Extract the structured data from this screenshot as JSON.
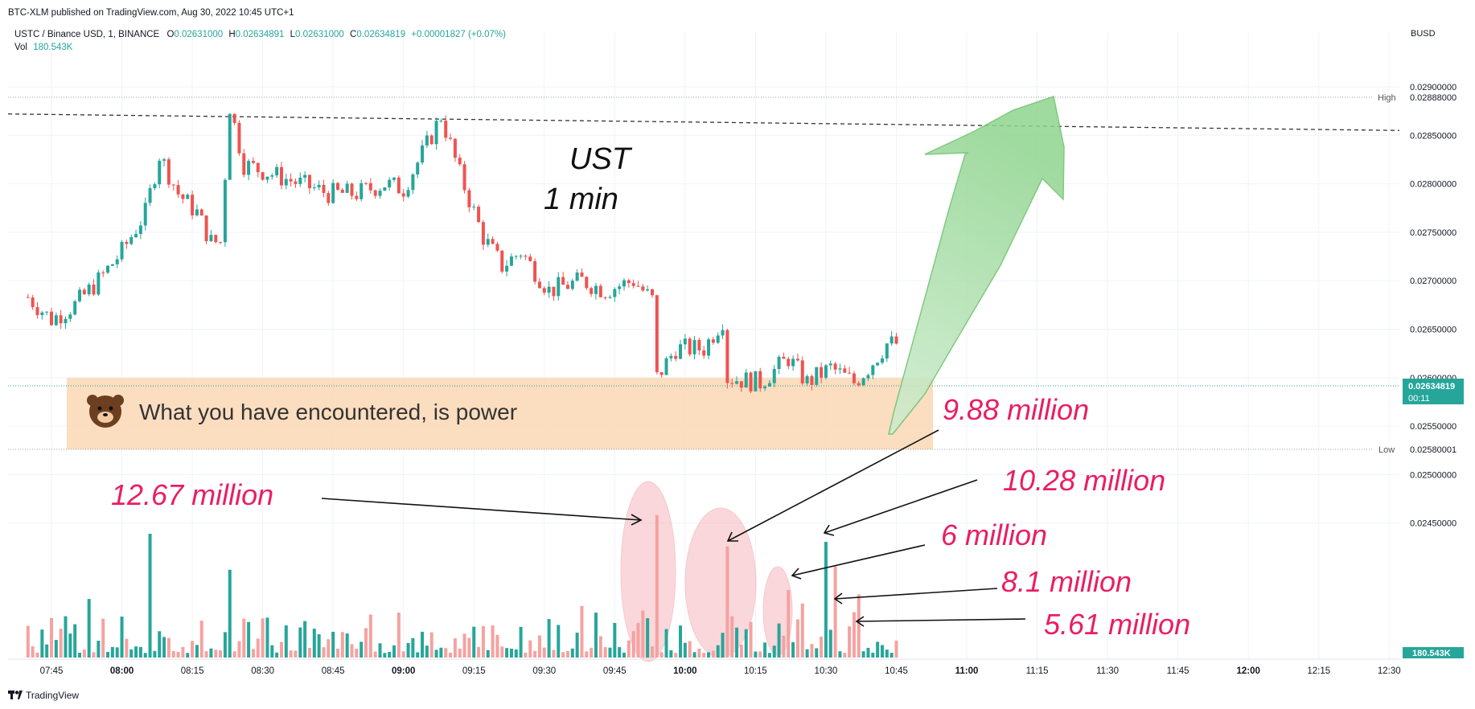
{
  "header": {
    "publisher_line": "BTC-XLM published on TradingView.com, Aug 30, 2022 10:45 UTC+1",
    "symbol": "USTC / Binance USD, 1, BINANCE",
    "o_label": "O",
    "o_value": "0.02631000",
    "h_label": "H",
    "h_value": "0.02634891",
    "l_label": "L",
    "l_value": "0.02631000",
    "c_label": "C",
    "c_value": "0.02634819",
    "change": "+0.00001827 (+0.07%)",
    "vol_label": "Vol",
    "vol_value": "180.543K"
  },
  "axis": {
    "currency": "BUSD",
    "high_tag": "High",
    "high_value": "0.02888000",
    "low_tag": "Low",
    "low_value": "0.02580001",
    "last_price": "0.02634819",
    "countdown": "00:11",
    "volume_tag": "180.543K"
  },
  "annotations": {
    "title_line1": "UST",
    "title_line2": "1 min",
    "banner_text": "What you have encountered, is power",
    "vol_labels": [
      "12.67 million",
      "9.88 million",
      "10.28 million",
      "6 million",
      "8.1 million",
      "5.61 million"
    ]
  },
  "footer": {
    "brand": "TradingView"
  },
  "colors": {
    "up": "#26a69a",
    "down": "#ef5350",
    "vol_up": "#26a69a",
    "vol_down": "#f5a2a0",
    "pink_text": "#e91e63",
    "banner_bg": "#fbd9b8",
    "arrow_green": "#8fd48f"
  },
  "chart_data": {
    "type": "candlestick",
    "symbol": "USTC / Binance USD, 1, BINANCE",
    "interval": "1 min",
    "currency": "BUSD",
    "y_ticks": [
      0.029,
      0.0285,
      0.028,
      0.0275,
      0.027,
      0.0265,
      0.026,
      0.0255,
      0.025,
      0.0245
    ],
    "x_ticks": [
      "07:45",
      "08:00",
      "08:15",
      "08:30",
      "08:45",
      "09:00",
      "09:15",
      "09:30",
      "09:45",
      "10:00",
      "10:15",
      "10:30",
      "10:45",
      "11:00",
      "11:15",
      "11:30",
      "11:45",
      "12:00",
      "12:15",
      "12:30"
    ],
    "x_range": [
      "07:40",
      "12:35"
    ],
    "y_range": [
      0.0242,
      0.0292
    ],
    "high": 0.02888,
    "low": 0.02580001,
    "last": 0.02634819,
    "resistance_line": {
      "from": [
        "07:40",
        0.02872
      ],
      "to": [
        "12:35",
        0.02855
      ]
    },
    "support_band": [
      0.0258,
      0.02643
    ],
    "anchors": [
      [
        "07:40",
        0.02683
      ],
      [
        "07:45",
        0.0266
      ],
      [
        "07:50",
        0.02675
      ],
      [
        "07:55",
        0.027
      ],
      [
        "08:00",
        0.0273
      ],
      [
        "08:05",
        0.0277
      ],
      [
        "08:08",
        0.0283
      ],
      [
        "08:12",
        0.0279
      ],
      [
        "08:16",
        0.0277
      ],
      [
        "08:19",
        0.0274
      ],
      [
        "08:21",
        0.0274
      ],
      [
        "08:23",
        0.0288
      ],
      [
        "08:26",
        0.0282
      ],
      [
        "08:32",
        0.0281
      ],
      [
        "08:38",
        0.028
      ],
      [
        "08:44",
        0.0279
      ],
      [
        "08:50",
        0.0279
      ],
      [
        "08:56",
        0.028
      ],
      [
        "09:00",
        0.02795
      ],
      [
        "09:05",
        0.0284
      ],
      [
        "09:08",
        0.0287
      ],
      [
        "09:12",
        0.0281
      ],
      [
        "09:17",
        0.02745
      ],
      [
        "09:21",
        0.02715
      ],
      [
        "09:25",
        0.0273
      ],
      [
        "09:31",
        0.0269
      ],
      [
        "09:38",
        0.027
      ],
      [
        "09:43",
        0.0269
      ],
      [
        "09:49",
        0.027
      ],
      [
        "09:53",
        0.0268
      ],
      [
        "09:54",
        0.026
      ],
      [
        "09:58",
        0.0263
      ],
      [
        "10:04",
        0.0263
      ],
      [
        "10:08",
        0.0266
      ],
      [
        "10:09",
        0.026
      ],
      [
        "10:16",
        0.02595
      ],
      [
        "10:22",
        0.0262
      ],
      [
        "10:26",
        0.02595
      ],
      [
        "10:31",
        0.0261
      ],
      [
        "10:36",
        0.02595
      ],
      [
        "10:39",
        0.0261
      ],
      [
        "10:43",
        0.02635
      ],
      [
        "10:45",
        0.02635
      ]
    ],
    "volume_annotations_million": [
      {
        "time": "09:54",
        "value": 12.67
      },
      {
        "time": "10:09",
        "value": 9.88
      },
      {
        "time": "10:30",
        "value": 10.28
      },
      {
        "time": "10:22",
        "value": 6
      },
      {
        "time": "10:32",
        "value": 8.1
      },
      {
        "time": "10:37",
        "value": 5.61
      }
    ]
  }
}
